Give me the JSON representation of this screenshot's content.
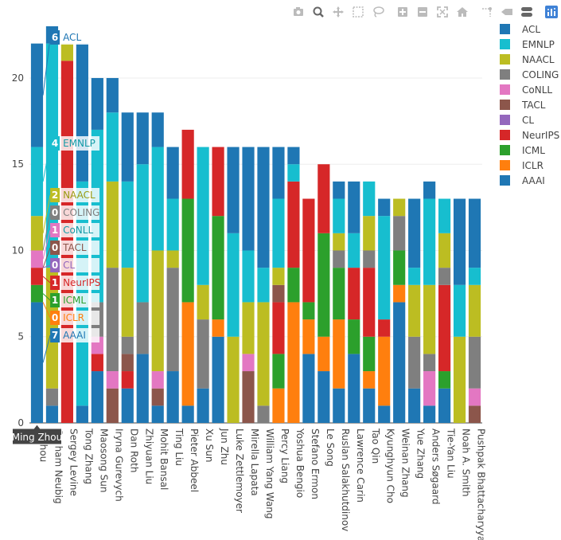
{
  "modebar": [
    {
      "name": "camera-icon",
      "title": "Download plot as a png"
    },
    {
      "name": "zoom-icon",
      "title": "Zoom"
    },
    {
      "name": "pan-icon",
      "title": "Pan"
    },
    {
      "name": "box-select-icon",
      "title": "Box Select"
    },
    {
      "name": "lasso-select-icon",
      "title": "Lasso Select"
    },
    {
      "name": "zoom-in-icon",
      "title": "Zoom in"
    },
    {
      "name": "zoom-out-icon",
      "title": "Zoom out"
    },
    {
      "name": "autoscale-icon",
      "title": "Autoscale"
    },
    {
      "name": "reset-axes-icon",
      "title": "Reset axes"
    },
    {
      "name": "spike-lines-icon",
      "title": "Toggle Spike Lines"
    },
    {
      "name": "hover-closest-icon",
      "title": "Show closest data on hover"
    },
    {
      "name": "hover-compare-icon",
      "title": "Compare data on hover"
    },
    {
      "name": "plotly-logo-icon",
      "title": "Produced with Plotly"
    }
  ],
  "chart_data": {
    "type": "bar",
    "barmode": "stack",
    "categories": [
      "Ming Zhou",
      "Graham Neubig",
      "Sergey Levine",
      "Tong Zhang",
      "Maosong Sun",
      "Iryna Gurevych",
      "Dan Roth",
      "Zhiyuan Liu",
      "Mohit Bansal",
      "Ting Liu",
      "Pieter Abbeel",
      "Xu Sun",
      "Jun Zhu",
      "Luke Zettlemoyer",
      "Mirella Lapata",
      "William Yang Wang",
      "Percy Liang",
      "Yoshua Bengio",
      "Stefano Ermon",
      "Le Song",
      "Ruslan Salakhutdinov",
      "Lawrence Carin",
      "Tao Qin",
      "Kyunghyun Cho",
      "Weinan Zhang",
      "Yue Zhang",
      "Anders Søgaard",
      "Tie-Yan Liu",
      "Noah A. Smith",
      "Pushpak Bhattacharyya"
    ],
    "tick_labels": [
      "g Zhou",
      "Graham Neubig",
      "Sergey Levine",
      "Tong Zhang",
      "Maosong Sun",
      "Iryna Gurevych",
      "Dan Roth",
      "Zhiyuan Liu",
      "Mohit Bansal",
      "Ting Liu",
      "Pieter Abbeel",
      "Xu Sun",
      "Jun Zhu",
      "Luke Zettlemoyer",
      "Mirella Lapata",
      "William Yang Wang",
      "Percy Liang",
      "Yoshua Bengio",
      "Stefano Ermon",
      "Le Song",
      "Ruslan Salakhutdinov",
      "Lawrence Carin",
      "Tao Qin",
      "Kyunghyun Cho",
      "Weinan Zhang",
      "Yue Zhang",
      "Anders Søgaard",
      "Tie-Yan Liu",
      "Noah A. Smith",
      "Pushpak Bhattacharyya"
    ],
    "series": [
      {
        "name": "AAAI",
        "color": "#1f77b4",
        "values": [
          7,
          1,
          0,
          1,
          3,
          0,
          2,
          4,
          1,
          3,
          1,
          2,
          5,
          0,
          0,
          0,
          0,
          0,
          4,
          3,
          2,
          4,
          2,
          1,
          7,
          2,
          1,
          2,
          0,
          0
        ]
      },
      {
        "name": "ICLR",
        "color": "#ff7f0e",
        "values": [
          0,
          0,
          0,
          0,
          0,
          0,
          0,
          0,
          0,
          0,
          6,
          0,
          1,
          0,
          0,
          0,
          2,
          7,
          2,
          2,
          4,
          0,
          1,
          4,
          1,
          0,
          0,
          0,
          0,
          0
        ]
      },
      {
        "name": "ICML",
        "color": "#2ca02c",
        "values": [
          1,
          0,
          0,
          0,
          0,
          0,
          0,
          0,
          0,
          0,
          6,
          0,
          6,
          0,
          0,
          0,
          2,
          2,
          1,
          6,
          3,
          2,
          2,
          0,
          2,
          0,
          0,
          1,
          0,
          0
        ]
      },
      {
        "name": "NeurIPS",
        "color": "#d62728",
        "values": [
          1,
          0,
          21,
          0,
          1,
          0,
          1,
          0,
          0,
          0,
          4,
          0,
          4,
          0,
          0,
          0,
          3,
          5,
          6,
          4,
          0,
          3,
          4,
          1,
          0,
          0,
          0,
          5,
          0,
          0
        ]
      },
      {
        "name": "CL",
        "color": "#9467bd",
        "values": [
          0,
          0,
          0,
          0,
          0,
          0,
          0,
          0,
          0,
          0,
          0,
          0,
          0,
          0,
          0,
          0,
          0,
          0,
          0,
          0,
          0,
          0,
          0,
          0,
          0,
          0,
          0,
          0,
          0,
          0
        ]
      },
      {
        "name": "TACL",
        "color": "#8c564b",
        "values": [
          0,
          0,
          0,
          0,
          0,
          2,
          1,
          0,
          1,
          0,
          0,
          0,
          0,
          0,
          3,
          0,
          1,
          0,
          0,
          0,
          0,
          0,
          0,
          0,
          0,
          0,
          0,
          0,
          0,
          1
        ]
      },
      {
        "name": "CoNLL",
        "color": "#e377c2",
        "values": [
          1,
          0,
          0,
          0,
          1,
          1,
          0,
          0,
          1,
          0,
          0,
          0,
          0,
          0,
          1,
          0,
          0,
          0,
          0,
          0,
          0,
          0,
          0,
          0,
          0,
          0,
          2,
          0,
          0,
          1
        ]
      },
      {
        "name": "COLING",
        "color": "#7f7f7f",
        "values": [
          0,
          1,
          0,
          0,
          2,
          6,
          1,
          3,
          0,
          6,
          0,
          4,
          0,
          0,
          0,
          1,
          0,
          0,
          0,
          0,
          1,
          0,
          1,
          0,
          2,
          3,
          1,
          1,
          0,
          3
        ]
      },
      {
        "name": "NAACL",
        "color": "#bcbd22",
        "values": [
          2,
          7,
          1,
          0,
          0,
          5,
          4,
          0,
          7,
          1,
          0,
          2,
          0,
          5,
          3,
          6,
          1,
          0,
          0,
          0,
          1,
          0,
          2,
          0,
          1,
          3,
          4,
          2,
          5,
          3
        ]
      },
      {
        "name": "EMNLP",
        "color": "#17becf",
        "values": [
          4,
          13,
          0,
          13,
          10,
          4,
          5,
          8,
          6,
          3,
          0,
          8,
          0,
          6,
          3,
          2,
          4,
          1,
          0,
          0,
          2,
          2,
          2,
          6,
          0,
          1,
          5,
          2,
          3,
          1
        ]
      },
      {
        "name": "ACL",
        "color": "#1f77b4",
        "values": [
          6,
          1,
          0,
          8,
          3,
          2,
          4,
          3,
          2,
          3,
          0,
          0,
          0,
          5,
          6,
          7,
          3,
          1,
          0,
          0,
          1,
          3,
          0,
          1,
          0,
          4,
          1,
          0,
          5,
          4
        ]
      }
    ],
    "legend_order": [
      "ACL",
      "EMNLP",
      "NAACL",
      "COLING",
      "CoNLL",
      "TACL",
      "CL",
      "NeurIPS",
      "ICML",
      "ICLR",
      "AAAI"
    ],
    "ylim": [
      0,
      23
    ],
    "yticks": [
      0,
      5,
      10,
      15,
      20
    ],
    "xlabel": "",
    "ylabel": "",
    "title": "",
    "grid": true,
    "legend_position": "right",
    "hover": {
      "category": "Ming Zhou",
      "label": "Ming Zhou",
      "items": [
        {
          "series": "ACL",
          "value": "6"
        },
        {
          "series": "EMNLP",
          "value": "4"
        },
        {
          "series": "NAACL",
          "value": "2"
        },
        {
          "series": "COLING",
          "value": "0"
        },
        {
          "series": "CoNLL",
          "value": "1"
        },
        {
          "series": "TACL",
          "value": "0"
        },
        {
          "series": "CL",
          "value": "0"
        },
        {
          "series": "NeurIPS",
          "value": "1"
        },
        {
          "series": "ICML",
          "value": "1"
        },
        {
          "series": "ICLR",
          "value": "0"
        },
        {
          "series": "AAAI",
          "value": "7"
        }
      ]
    }
  }
}
